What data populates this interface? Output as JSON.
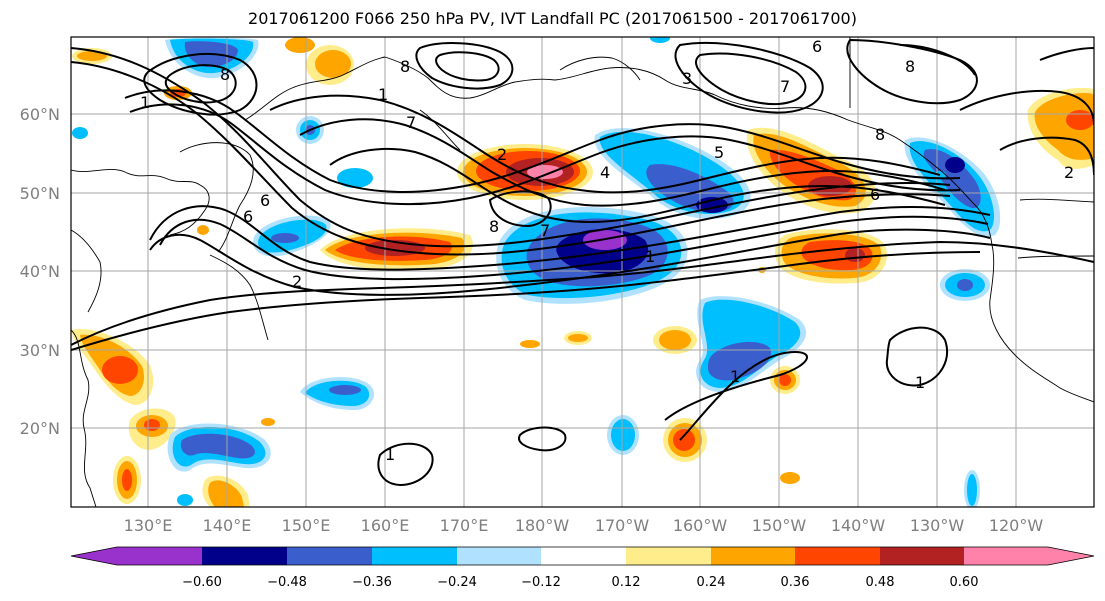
{
  "title": "2017061200 F066 250 hPa PV, IVT Landfall PC (2017061500 - 2017061700)",
  "lat_labels": [
    "60°N",
    "50°N",
    "40°N",
    "30°N",
    "20°N"
  ],
  "lon_labels": [
    "130°E",
    "140°E",
    "150°E",
    "160°E",
    "170°E",
    "180°W",
    "170°W",
    "160°W",
    "150°W",
    "140°W",
    "130°W",
    "120°W"
  ],
  "colorbar": {
    "colors": [
      "#9932CC",
      "#00008B",
      "#3A5FCD",
      "#00BFFF",
      "#B0E2FF",
      "#FFFFFF",
      "#FFEC8B",
      "#FFA500",
      "#FF4500",
      "#B22222",
      "#FF82AB"
    ],
    "tick_labels": [
      "−0.60",
      "−0.48",
      "−0.36",
      "−0.24",
      "−0.12",
      "0.12",
      "0.24",
      "0.36",
      "0.48",
      "0.60"
    ]
  },
  "contour_labels": [
    "8",
    "8",
    "1",
    "7",
    "6",
    "6",
    "2",
    "2",
    "8",
    "4",
    "7",
    "1",
    "1",
    "1",
    "1",
    "1",
    "6",
    "8",
    "6",
    "7",
    "5",
    "3",
    "2",
    "8"
  ]
}
